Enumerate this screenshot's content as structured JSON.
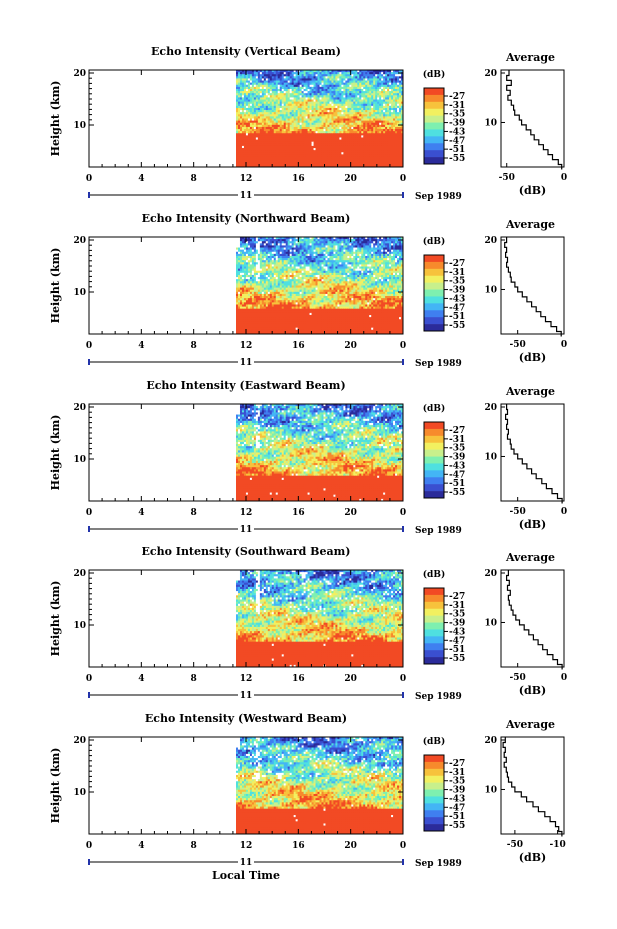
{
  "figure": {
    "units_label": "(dB)",
    "average_title": "Average",
    "height_label": "Height (km)",
    "avg_xlabel": "(dB)",
    "day_label": "11",
    "month_label": "Sep 1989",
    "xlabel": "Local Time",
    "colors": [
      "#2b2b9a",
      "#3a4fd0",
      "#3f7ff0",
      "#43b5f5",
      "#4fe0e0",
      "#7ef0b0",
      "#c8f08c",
      "#f2f060",
      "#f7c23c",
      "#f78a2c",
      "#f24a24"
    ]
  },
  "chart_data": [
    {
      "type": "heatmap",
      "title": "Echo Intensity (Vertical Beam)",
      "x_ticks": [
        "0",
        "4",
        "8",
        "12",
        "16",
        "20",
        "0"
      ],
      "y_ticks": [
        "20",
        "10"
      ],
      "xlim": [
        0,
        24
      ],
      "ylim": [
        1,
        20
      ],
      "data_start_hour": 11.4,
      "colorbar_ticks": [
        "-27",
        "-31",
        "-35",
        "-39",
        "-43",
        "-47",
        "-51",
        "-55"
      ],
      "profile": {
        "x_ticks": [
          "-50",
          "0"
        ],
        "xlim": [
          -55,
          0
        ],
        "ylim": [
          1,
          20
        ],
        "heights": [
          1,
          2,
          3,
          4,
          5,
          6,
          7,
          8,
          9,
          10,
          11,
          12,
          13,
          14,
          15,
          16,
          17,
          18,
          19,
          20
        ],
        "values": [
          -2,
          -5,
          -10,
          -14,
          -18,
          -22,
          -26,
          -29,
          -33,
          -37,
          -39,
          -43,
          -44,
          -46,
          -49,
          -47,
          -50,
          -46,
          -50,
          -48
        ]
      }
    },
    {
      "type": "heatmap",
      "title": "Echo Intensity (Northward Beam)",
      "x_ticks": [
        "0",
        "4",
        "8",
        "12",
        "16",
        "20",
        "0"
      ],
      "y_ticks": [
        "20",
        "10"
      ],
      "xlim": [
        0,
        24
      ],
      "ylim": [
        1,
        20
      ],
      "data_start_hour": 11.4,
      "colorbar_ticks": [
        "-27",
        "-31",
        "-35",
        "-39",
        "-43",
        "-47",
        "-51",
        "-55"
      ],
      "profile": {
        "x_ticks": [
          "-50",
          "0"
        ],
        "xlim": [
          -68,
          0
        ],
        "ylim": [
          1,
          20
        ],
        "heights": [
          1,
          2,
          3,
          4,
          5,
          6,
          7,
          8,
          9,
          10,
          11,
          12,
          13,
          14,
          15,
          16,
          17,
          18,
          19,
          20
        ],
        "values": [
          -3,
          -8,
          -14,
          -20,
          -25,
          -30,
          -35,
          -40,
          -45,
          -50,
          -53,
          -57,
          -58,
          -60,
          -62,
          -61,
          -63,
          -62,
          -64,
          -62
        ]
      }
    },
    {
      "type": "heatmap",
      "title": "Echo Intensity (Eastward Beam)",
      "x_ticks": [
        "0",
        "4",
        "8",
        "12",
        "16",
        "20",
        "0"
      ],
      "y_ticks": [
        "20",
        "10"
      ],
      "xlim": [
        0,
        24
      ],
      "ylim": [
        1,
        20
      ],
      "data_start_hour": 11.4,
      "colorbar_ticks": [
        "-27",
        "-31",
        "-35",
        "-39",
        "-43",
        "-47",
        "-51",
        "-55"
      ],
      "profile": {
        "x_ticks": [
          "-50",
          "0"
        ],
        "xlim": [
          -68,
          0
        ],
        "ylim": [
          1,
          20
        ],
        "heights": [
          1,
          2,
          3,
          4,
          5,
          6,
          7,
          8,
          9,
          10,
          11,
          12,
          13,
          14,
          15,
          16,
          17,
          18,
          19,
          20
        ],
        "values": [
          -2,
          -7,
          -13,
          -19,
          -24,
          -30,
          -35,
          -40,
          -45,
          -50,
          -54,
          -57,
          -58,
          -61,
          -60,
          -62,
          -61,
          -63,
          -61,
          -62
        ]
      }
    },
    {
      "type": "heatmap",
      "title": "Echo Intensity (Southward Beam)",
      "x_ticks": [
        "0",
        "4",
        "8",
        "12",
        "16",
        "20",
        "0"
      ],
      "y_ticks": [
        "20",
        "10"
      ],
      "xlim": [
        0,
        24
      ],
      "ylim": [
        1,
        20
      ],
      "data_start_hour": 11.4,
      "colorbar_ticks": [
        "-27",
        "-31",
        "-35",
        "-39",
        "-43",
        "-47",
        "-51",
        "-55"
      ],
      "profile": {
        "x_ticks": [
          "-50",
          "0"
        ],
        "xlim": [
          -68,
          0
        ],
        "ylim": [
          1,
          20
        ],
        "heights": [
          1,
          2,
          3,
          4,
          5,
          6,
          7,
          8,
          9,
          10,
          11,
          12,
          13,
          14,
          15,
          16,
          17,
          18,
          19,
          20
        ],
        "values": [
          -2,
          -7,
          -12,
          -18,
          -23,
          -28,
          -33,
          -38,
          -43,
          -48,
          -52,
          -55,
          -57,
          -59,
          -60,
          -58,
          -61,
          -59,
          -62,
          -60
        ]
      }
    },
    {
      "type": "heatmap",
      "title": "Echo Intensity (Westward Beam)",
      "x_ticks": [
        "0",
        "4",
        "8",
        "12",
        "16",
        "20",
        "0"
      ],
      "y_ticks": [
        "20",
        "10"
      ],
      "xlim": [
        0,
        24
      ],
      "ylim": [
        1,
        20
      ],
      "data_start_hour": 11.4,
      "colorbar_ticks": [
        "-27",
        "-31",
        "-35",
        "-39",
        "-43",
        "-47",
        "-51",
        "-55"
      ],
      "profile": {
        "x_ticks": [
          "-50",
          "-10"
        ],
        "xlim": [
          -63,
          -4
        ],
        "ylim": [
          1,
          20
        ],
        "heights": [
          1,
          2,
          3,
          4,
          5,
          6,
          7,
          8,
          9,
          10,
          11,
          12,
          13,
          14,
          15,
          16,
          17,
          18,
          19,
          20
        ],
        "values": [
          -6,
          -9,
          -12,
          -17,
          -22,
          -28,
          -33,
          -39,
          -44,
          -50,
          -53,
          -56,
          -57,
          -58,
          -60,
          -58,
          -60,
          -59,
          -61,
          -59
        ]
      }
    }
  ]
}
